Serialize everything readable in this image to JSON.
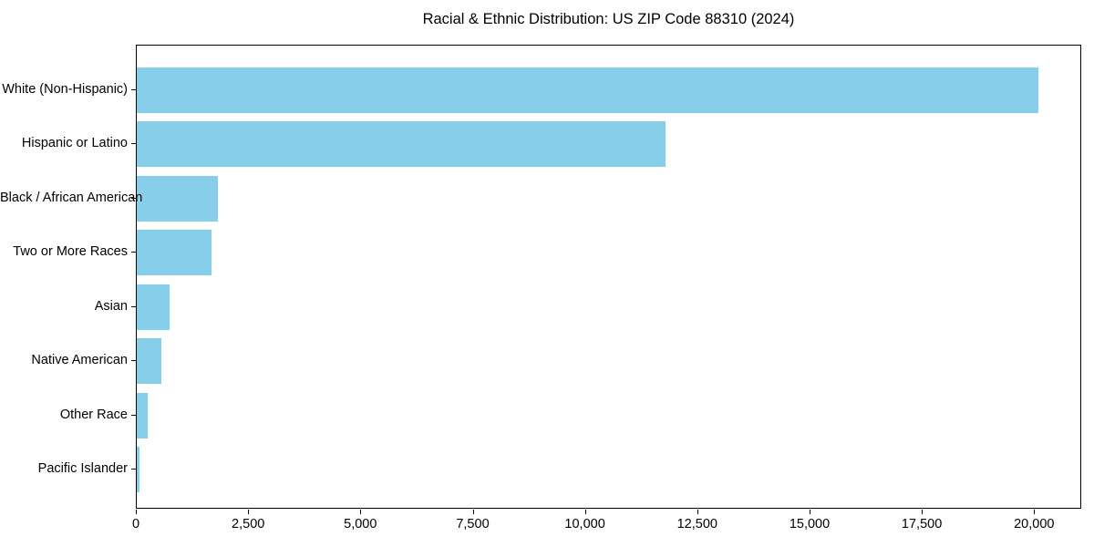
{
  "chart_data": {
    "type": "bar",
    "orientation": "horizontal",
    "title": "Racial & Ethnic Distribution: US ZIP Code 88310 (2024)",
    "categories": [
      "White (Non-Hispanic)",
      "Hispanic or Latino",
      "Black / African American",
      "Two or More Races",
      "Asian",
      "Native American",
      "Other Race",
      "Pacific Islander"
    ],
    "values": [
      20075,
      11770,
      1800,
      1660,
      730,
      545,
      240,
      60
    ],
    "xlabel": "",
    "ylabel": "",
    "xlim": [
      0,
      21050
    ],
    "x_tick_values": [
      0,
      2500,
      5000,
      7500,
      10000,
      12500,
      15000,
      17500,
      20000
    ],
    "x_tick_labels": [
      "0",
      "2,500",
      "5,000",
      "7,500",
      "10,000",
      "12,500",
      "15,000",
      "17,500",
      "20,000"
    ],
    "grid": false,
    "legend": "none",
    "bar_color": "#87CEEB",
    "background_color": "#FFFFFF",
    "spine_color": "#000000",
    "text_color": "#000000"
  }
}
